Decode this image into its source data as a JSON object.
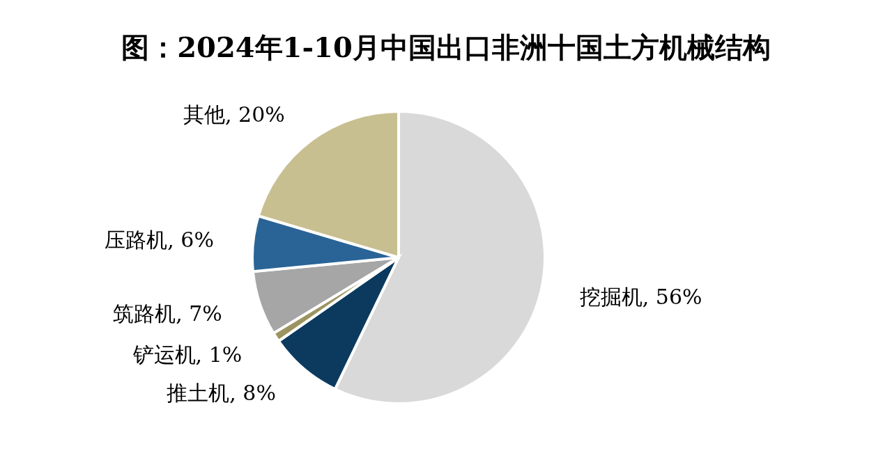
{
  "chart_data": {
    "type": "pie",
    "title": "图：2024年1-10月中国出口非洲十国土方机械结构",
    "categories": [
      "挖掘机",
      "推土机",
      "铲运机",
      "筑路机",
      "压路机",
      "其他"
    ],
    "values": [
      56,
      8,
      1,
      7,
      6,
      20
    ],
    "value_labels": [
      "56%",
      "8%",
      "1%",
      "7%",
      "6%",
      "20%"
    ],
    "colors": [
      "#d9d9d9",
      "#0b3a5e",
      "#9c9460",
      "#a6a6a6",
      "#2a6496",
      "#c8bf91"
    ]
  }
}
